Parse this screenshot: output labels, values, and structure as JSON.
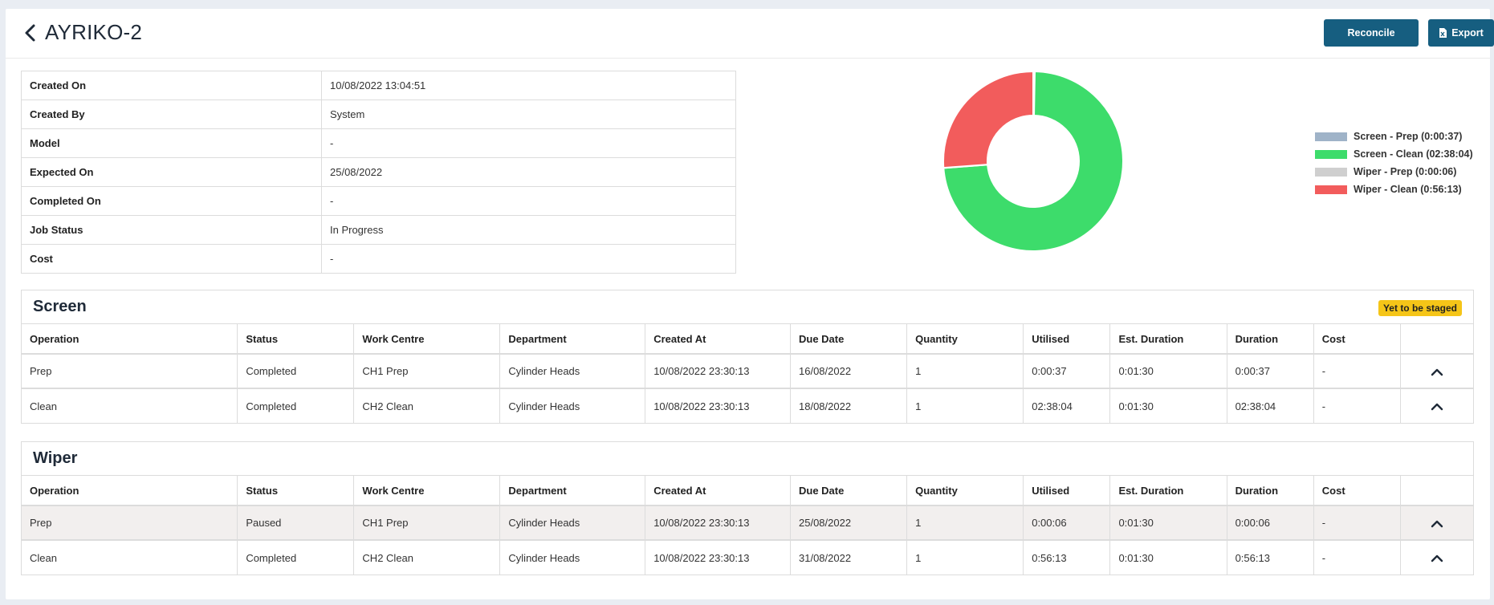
{
  "header": {
    "title": "AYRIKO-2",
    "reconcile_label": "Reconcile",
    "export_label": "Export"
  },
  "info": [
    {
      "label": "Created On",
      "value": "10/08/2022 13:04:51"
    },
    {
      "label": "Created By",
      "value": "System"
    },
    {
      "label": "Model",
      "value": "-"
    },
    {
      "label": "Expected On",
      "value": "25/08/2022"
    },
    {
      "label": "Completed On",
      "value": "-"
    },
    {
      "label": "Job Status",
      "value": "In Progress"
    },
    {
      "label": "Cost",
      "value": "-"
    }
  ],
  "chart_data": {
    "type": "pie",
    "categories": [
      "Screen - Prep (0:00:37)",
      "Screen - Clean (02:38:04)",
      "Wiper - Prep (0:00:06)",
      "Wiper - Clean (0:56:13)"
    ],
    "values": [
      37,
      9484,
      6,
      3373
    ],
    "colors": [
      "#9fb3c8",
      "#3ddc6b",
      "#cfcfcf",
      "#f25c5c"
    ],
    "legend": "right"
  },
  "columns": [
    "Operation",
    "Status",
    "Work Centre",
    "Department",
    "Created At",
    "Due Date",
    "Quantity",
    "Utilised",
    "Est. Duration",
    "Duration",
    "Cost"
  ],
  "screen": {
    "title": "Screen",
    "badge": "Yet to be staged",
    "rows": [
      {
        "operation": "Prep",
        "status": "Completed",
        "work_centre": "CH1 Prep",
        "department": "Cylinder Heads",
        "created_at": "10/08/2022 23:30:13",
        "due_date": "16/08/2022",
        "quantity": "1",
        "utilised": "0:00:37",
        "est_duration": "0:01:30",
        "duration": "0:00:37",
        "cost": "-"
      },
      {
        "operation": "Clean",
        "status": "Completed",
        "work_centre": "CH2 Clean",
        "department": "Cylinder Heads",
        "created_at": "10/08/2022 23:30:13",
        "due_date": "18/08/2022",
        "quantity": "1",
        "utilised": "02:38:04",
        "est_duration": "0:01:30",
        "duration": "02:38:04",
        "cost": "-"
      }
    ]
  },
  "wiper": {
    "title": "Wiper",
    "rows": [
      {
        "operation": "Prep",
        "status": "Paused",
        "work_centre": "CH1 Prep",
        "department": "Cylinder Heads",
        "created_at": "10/08/2022 23:30:13",
        "due_date": "25/08/2022",
        "quantity": "1",
        "utilised": "0:00:06",
        "est_duration": "0:01:30",
        "duration": "0:00:06",
        "cost": "-"
      },
      {
        "operation": "Clean",
        "status": "Completed",
        "work_centre": "CH2 Clean",
        "department": "Cylinder Heads",
        "created_at": "10/08/2022 23:30:13",
        "due_date": "31/08/2022",
        "quantity": "1",
        "utilised": "0:56:13",
        "est_duration": "0:01:30",
        "duration": "0:56:13",
        "cost": "-"
      }
    ]
  }
}
